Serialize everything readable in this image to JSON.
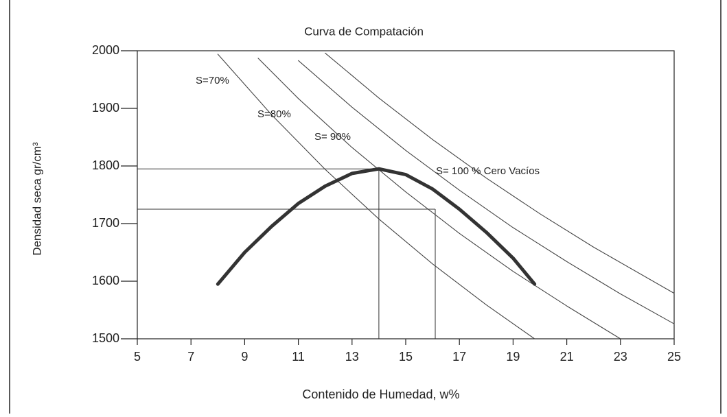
{
  "chart_data": {
    "type": "line",
    "title": "Curva de Compatación",
    "x_label": "Contenido de Humedad, w%",
    "y_label": "Densidad seca gr/cm³",
    "xlim": [
      5,
      25
    ],
    "xticks": [
      5,
      7,
      9,
      11,
      13,
      15,
      17,
      19,
      21,
      23,
      25
    ],
    "ylim": [
      1500,
      2000
    ],
    "yticks": [
      1500,
      1600,
      1700,
      1800,
      1900,
      2000
    ],
    "curve": {
      "color": "#333333",
      "x": [
        8,
        9,
        10,
        11,
        12,
        13,
        14,
        15,
        16,
        17,
        18,
        19,
        19.8
      ],
      "values": [
        1595,
        1650,
        1695,
        1735,
        1765,
        1787,
        1795,
        1785,
        1760,
        1725,
        1685,
        1640,
        1595
      ]
    },
    "series": [
      {
        "name": "S=70%",
        "color": "#444444",
        "x": [
          8,
          10,
          12,
          14,
          16,
          18,
          19.8
        ],
        "values": [
          1994,
          1889,
          1794,
          1708,
          1630,
          1559,
          1500
        ]
      },
      {
        "name": "S=80%",
        "color": "#444444",
        "x": [
          9.5,
          11,
          13,
          15,
          17,
          19,
          21,
          23
        ],
        "values": [
          1987,
          1917,
          1832,
          1755,
          1683,
          1617,
          1557,
          1500
        ]
      },
      {
        "name": "S= 90%",
        "color": "#444444",
        "x": [
          11,
          13,
          15,
          17,
          19,
          21,
          23,
          25
        ],
        "values": [
          1983,
          1902,
          1827,
          1758,
          1693,
          1634,
          1578,
          1526
        ]
      },
      {
        "name": "S= 100 % Cero Vacíos",
        "color": "#444444",
        "x": [
          12,
          14,
          16,
          18,
          20,
          22,
          25
        ],
        "values": [
          1996,
          1918,
          1846,
          1779,
          1717,
          1659,
          1579
        ]
      }
    ],
    "guides": [
      {
        "x": 14,
        "y": 1795
      },
      {
        "x": 16.1,
        "y": 1725
      }
    ]
  }
}
